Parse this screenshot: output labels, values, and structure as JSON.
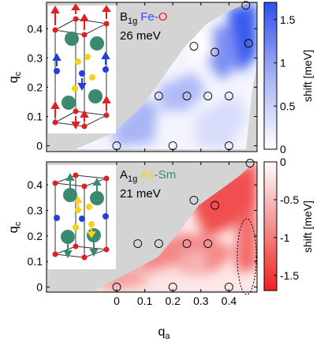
{
  "figure": {
    "xlabel_main": "q",
    "xlabel_sub": "a",
    "ylabel_main": "q",
    "ylabel_sub": "c",
    "cbar_label": "shift [meV]"
  },
  "chart_data": [
    {
      "type": "heatmap",
      "panel": "top",
      "mode_main": "B",
      "mode_sub": "1g",
      "atoms_a": "Fe",
      "atoms_sep": "-",
      "atoms_b": "O",
      "energy": "26 meV",
      "x_ticks": [
        0,
        0.1,
        0.2,
        0.3,
        0.4
      ],
      "x_tick_labels": [
        "0",
        "0.1",
        "0.2",
        "0.3",
        "0.4"
      ],
      "y_ticks": [
        0,
        0.1,
        0.2,
        0.3,
        0.4
      ],
      "y_tick_labels": [
        "0",
        "0.1",
        "0.2",
        "0.3",
        "0.4"
      ],
      "xlim": [
        -0.25,
        0.5
      ],
      "ylim": [
        -0.02,
        0.49
      ],
      "colorbar": {
        "ticks": [
          0,
          0.5,
          1,
          1.5
        ],
        "tick_labels": [
          "0",
          "0.5",
          "1",
          "1.5"
        ],
        "range": [
          0,
          1.7
        ],
        "low_color": "#ffffff",
        "high_color": "#3050ef"
      },
      "data_points": [
        {
          "x": 0,
          "y": 0
        },
        {
          "x": 0.2,
          "y": 0
        },
        {
          "x": 0.4,
          "y": 0
        },
        {
          "x": 0.15,
          "y": 0.17
        },
        {
          "x": 0.25,
          "y": 0.17
        },
        {
          "x": 0.325,
          "y": 0.17
        },
        {
          "x": 0.4,
          "y": 0.17
        },
        {
          "x": 0.275,
          "y": 0.34
        },
        {
          "x": 0.35,
          "y": 0.32
        },
        {
          "x": 0.47,
          "y": 0.35
        },
        {
          "x": 0.46,
          "y": 0.48
        }
      ],
      "regions": [
        {
          "x": 0.44,
          "y": 0.42,
          "value": 1.6
        },
        {
          "x": 0.36,
          "y": 0.25,
          "value": 1.2
        },
        {
          "x": 0.3,
          "y": 0.3,
          "value": 0.5
        },
        {
          "x": 0.15,
          "y": 0.12,
          "value": 0.7
        },
        {
          "x": 0.02,
          "y": 0.05,
          "value": 0.3
        }
      ]
    },
    {
      "type": "heatmap",
      "panel": "bottom",
      "mode_main": "A",
      "mode_sub": "1g",
      "atoms_a": "As",
      "atoms_sep": "-",
      "atoms_b": "Sm",
      "energy": "21 meV",
      "x_ticks": [
        0,
        0.1,
        0.2,
        0.3,
        0.4
      ],
      "x_tick_labels": [
        "0",
        "0.1",
        "0.2",
        "0.3",
        "0.4"
      ],
      "y_ticks": [
        0,
        0.1,
        0.2,
        0.3,
        0.4
      ],
      "y_tick_labels": [
        "0",
        "0.1",
        "0.2",
        "0.3",
        "0.4"
      ],
      "xlim": [
        -0.25,
        0.5
      ],
      "ylim": [
        -0.02,
        0.49
      ],
      "colorbar": {
        "ticks": [
          0,
          -0.5,
          -1,
          -1.5
        ],
        "tick_labels": [
          "0",
          "-0.5",
          "-1",
          "-1.5"
        ],
        "range": [
          -1.7,
          0
        ],
        "low_color": "#f02020",
        "high_color": "#ffffff"
      },
      "data_points": [
        {
          "x": 0,
          "y": 0
        },
        {
          "x": 0.2,
          "y": 0
        },
        {
          "x": 0.4,
          "y": 0
        },
        {
          "x": 0.075,
          "y": 0.17
        },
        {
          "x": 0.15,
          "y": 0.17
        },
        {
          "x": 0.25,
          "y": 0.17
        },
        {
          "x": 0.325,
          "y": 0.17
        },
        {
          "x": 0.275,
          "y": 0.34
        },
        {
          "x": 0.35,
          "y": 0.32
        },
        {
          "x": 0.475,
          "y": 0.485
        }
      ],
      "regions": [
        {
          "x": 0.3,
          "y": 0.38,
          "value": -1.4
        },
        {
          "x": 0.15,
          "y": 0.18,
          "value": -0.9
        },
        {
          "x": 0.38,
          "y": 0.2,
          "value": -1.1
        },
        {
          "x": 0.07,
          "y": 0.06,
          "value": -0.5
        },
        {
          "x": 0.2,
          "y": 0.04,
          "value": -0.1
        }
      ]
    }
  ]
}
